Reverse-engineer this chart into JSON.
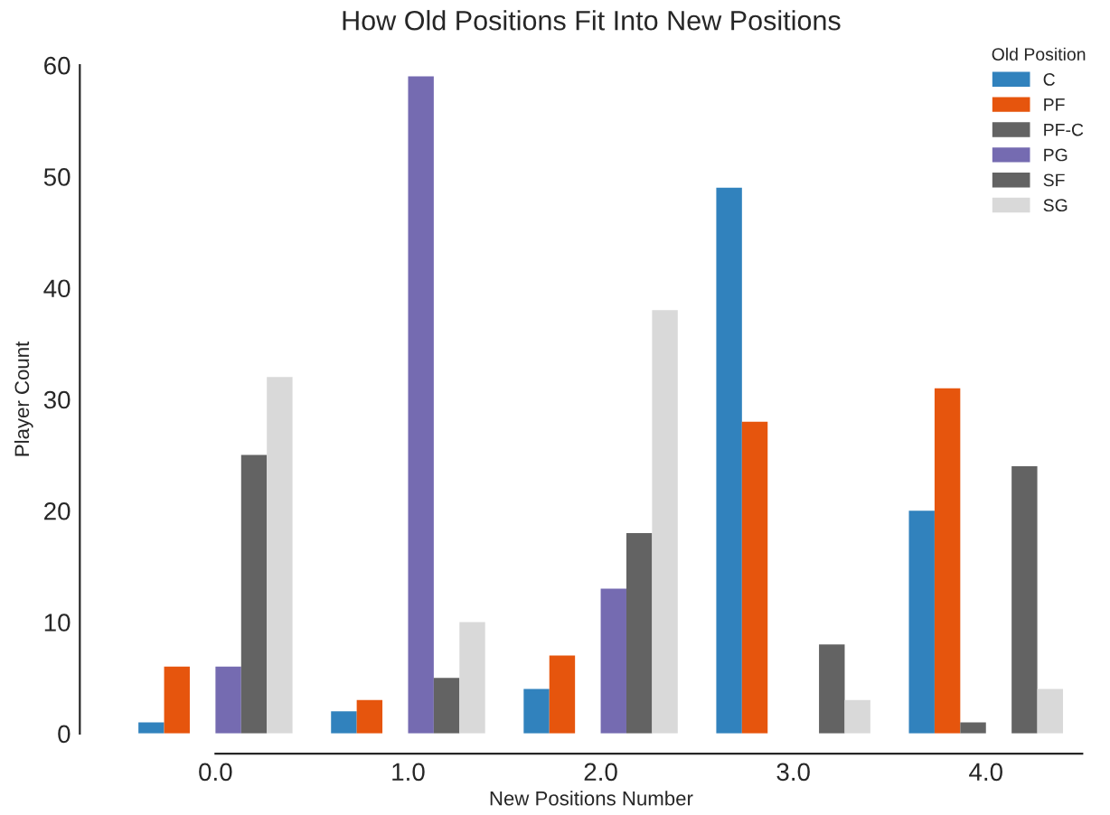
{
  "chart_data": {
    "type": "bar",
    "title": "How Old Positions Fit Into New Positions",
    "xlabel": "New Positions Number",
    "ylabel": "Player Count",
    "legend_title": "Old Position",
    "legend": "top right",
    "grid": false,
    "categories": [
      "0.0",
      "1.0",
      "2.0",
      "3.0",
      "4.0"
    ],
    "series": [
      {
        "name": "C",
        "color": "#3182bd",
        "values": [
          1,
          2,
          4,
          49,
          20
        ]
      },
      {
        "name": "PF",
        "color": "#e6550d",
        "values": [
          6,
          3,
          7,
          28,
          31
        ]
      },
      {
        "name": "PF-C",
        "color": "#636363",
        "values": [
          0,
          0,
          0,
          0,
          1
        ]
      },
      {
        "name": "PG",
        "color": "#756bb1",
        "values": [
          6,
          59,
          13,
          0,
          0
        ]
      },
      {
        "name": "SF",
        "color": "#636363",
        "values": [
          25,
          5,
          18,
          8,
          24
        ]
      },
      {
        "name": "SG",
        "color": "#d9d9d9",
        "values": [
          32,
          10,
          38,
          3,
          4
        ]
      }
    ],
    "ylim": [
      0,
      60
    ],
    "yticks": [
      0,
      10,
      20,
      30,
      40,
      50,
      60
    ]
  }
}
